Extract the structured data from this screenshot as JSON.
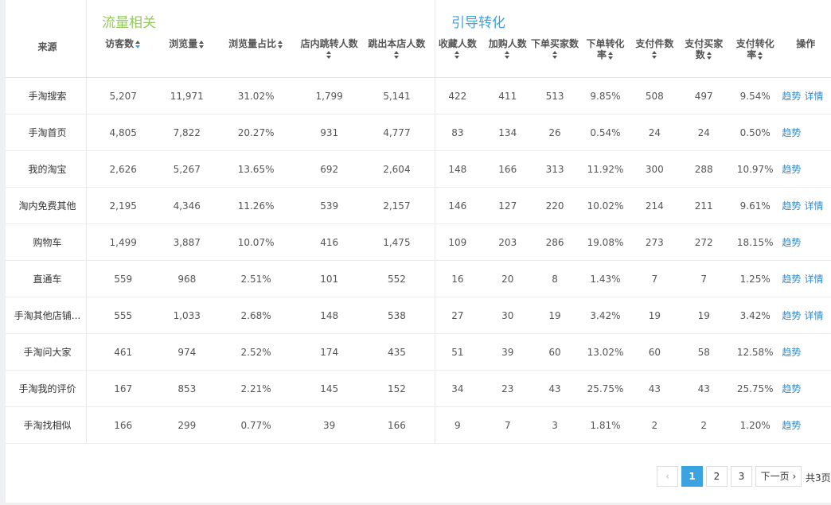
{
  "groups": {
    "traffic": "流量相关",
    "conversion": "引导转化"
  },
  "columns": [
    {
      "key": "source",
      "label": "来源",
      "sort": "none"
    },
    {
      "key": "visitors",
      "label": "访客数",
      "sort": "active"
    },
    {
      "key": "pageviews",
      "label": "浏览量",
      "sort": "inline"
    },
    {
      "key": "pv_share",
      "label": "浏览量占比",
      "sort": "inline"
    },
    {
      "key": "jump_in",
      "label": "店内跳转人数",
      "sort": "below"
    },
    {
      "key": "jump_out",
      "label": "跳出本店人数",
      "sort": "below"
    },
    {
      "key": "favorites",
      "label": "收藏人数",
      "sort": "below"
    },
    {
      "key": "add_cart",
      "label": "加购人数",
      "sort": "below"
    },
    {
      "key": "order_buyers",
      "label": "下单买家数",
      "sort": "below"
    },
    {
      "key": "order_rate",
      "label": "下单转化率",
      "sort": "inline2"
    },
    {
      "key": "pay_items",
      "label": "支付件数",
      "sort": "below"
    },
    {
      "key": "pay_buyers",
      "label": "支付买家数",
      "sort": "inline2"
    },
    {
      "key": "pay_rate",
      "label": "支付转化率",
      "sort": "inline2"
    },
    {
      "key": "actions",
      "label": "操作",
      "sort": "none"
    }
  ],
  "rows": [
    {
      "source": "手淘搜索",
      "visitors": "5,207",
      "pageviews": "11,971",
      "pv_share": "31.02%",
      "jump_in": "1,799",
      "jump_out": "5,141",
      "favorites": "422",
      "add_cart": "411",
      "order_buyers": "513",
      "order_rate": "9.85%",
      "pay_items": "508",
      "pay_buyers": "497",
      "pay_rate": "9.54%",
      "actions": [
        "趋势",
        "详情"
      ]
    },
    {
      "source": "手淘首页",
      "visitors": "4,805",
      "pageviews": "7,822",
      "pv_share": "20.27%",
      "jump_in": "931",
      "jump_out": "4,777",
      "favorites": "83",
      "add_cart": "134",
      "order_buyers": "26",
      "order_rate": "0.54%",
      "pay_items": "24",
      "pay_buyers": "24",
      "pay_rate": "0.50%",
      "actions": [
        "趋势"
      ]
    },
    {
      "source": "我的淘宝",
      "visitors": "2,626",
      "pageviews": "5,267",
      "pv_share": "13.65%",
      "jump_in": "692",
      "jump_out": "2,604",
      "favorites": "148",
      "add_cart": "166",
      "order_buyers": "313",
      "order_rate": "11.92%",
      "pay_items": "300",
      "pay_buyers": "288",
      "pay_rate": "10.97%",
      "actions": [
        "趋势"
      ]
    },
    {
      "source": "淘内免费其他",
      "visitors": "2,195",
      "pageviews": "4,346",
      "pv_share": "11.26%",
      "jump_in": "539",
      "jump_out": "2,157",
      "favorites": "146",
      "add_cart": "127",
      "order_buyers": "220",
      "order_rate": "10.02%",
      "pay_items": "214",
      "pay_buyers": "211",
      "pay_rate": "9.61%",
      "actions": [
        "趋势",
        "详情"
      ]
    },
    {
      "source": "购物车",
      "visitors": "1,499",
      "pageviews": "3,887",
      "pv_share": "10.07%",
      "jump_in": "416",
      "jump_out": "1,475",
      "favorites": "109",
      "add_cart": "203",
      "order_buyers": "286",
      "order_rate": "19.08%",
      "pay_items": "273",
      "pay_buyers": "272",
      "pay_rate": "18.15%",
      "actions": [
        "趋势"
      ]
    },
    {
      "source": "直通车",
      "visitors": "559",
      "pageviews": "968",
      "pv_share": "2.51%",
      "jump_in": "101",
      "jump_out": "552",
      "favorites": "16",
      "add_cart": "20",
      "order_buyers": "8",
      "order_rate": "1.43%",
      "pay_items": "7",
      "pay_buyers": "7",
      "pay_rate": "1.25%",
      "actions": [
        "趋势",
        "详情"
      ]
    },
    {
      "source": "手淘其他店铺...",
      "visitors": "555",
      "pageviews": "1,033",
      "pv_share": "2.68%",
      "jump_in": "148",
      "jump_out": "538",
      "favorites": "27",
      "add_cart": "30",
      "order_buyers": "19",
      "order_rate": "3.42%",
      "pay_items": "19",
      "pay_buyers": "19",
      "pay_rate": "3.42%",
      "actions": [
        "趋势",
        "详情"
      ]
    },
    {
      "source": "手淘问大家",
      "visitors": "461",
      "pageviews": "974",
      "pv_share": "2.52%",
      "jump_in": "174",
      "jump_out": "435",
      "favorites": "51",
      "add_cart": "39",
      "order_buyers": "60",
      "order_rate": "13.02%",
      "pay_items": "60",
      "pay_buyers": "58",
      "pay_rate": "12.58%",
      "actions": [
        "趋势"
      ]
    },
    {
      "source": "手淘我的评价",
      "visitors": "167",
      "pageviews": "853",
      "pv_share": "2.21%",
      "jump_in": "145",
      "jump_out": "152",
      "favorites": "34",
      "add_cart": "23",
      "order_buyers": "43",
      "order_rate": "25.75%",
      "pay_items": "43",
      "pay_buyers": "43",
      "pay_rate": "25.75%",
      "actions": [
        "趋势"
      ]
    },
    {
      "source": "手淘找相似",
      "visitors": "166",
      "pageviews": "299",
      "pv_share": "0.77%",
      "jump_in": "39",
      "jump_out": "166",
      "favorites": "9",
      "add_cart": "7",
      "order_buyers": "3",
      "order_rate": "1.81%",
      "pay_items": "2",
      "pay_buyers": "2",
      "pay_rate": "1.20%",
      "actions": [
        "趋势"
      ]
    }
  ],
  "pagination": {
    "prev_icon": "chevron-left-icon",
    "pages": [
      "1",
      "2",
      "3"
    ],
    "current": "1",
    "next_label": "下一页",
    "next_icon": "chevron-right-icon",
    "total": "共3页"
  },
  "colors": {
    "traffic_group": "#94c95e",
    "conversion_group": "#3ba3e0",
    "link": "#2d8cd8",
    "active_page": "#3ba3e0"
  }
}
